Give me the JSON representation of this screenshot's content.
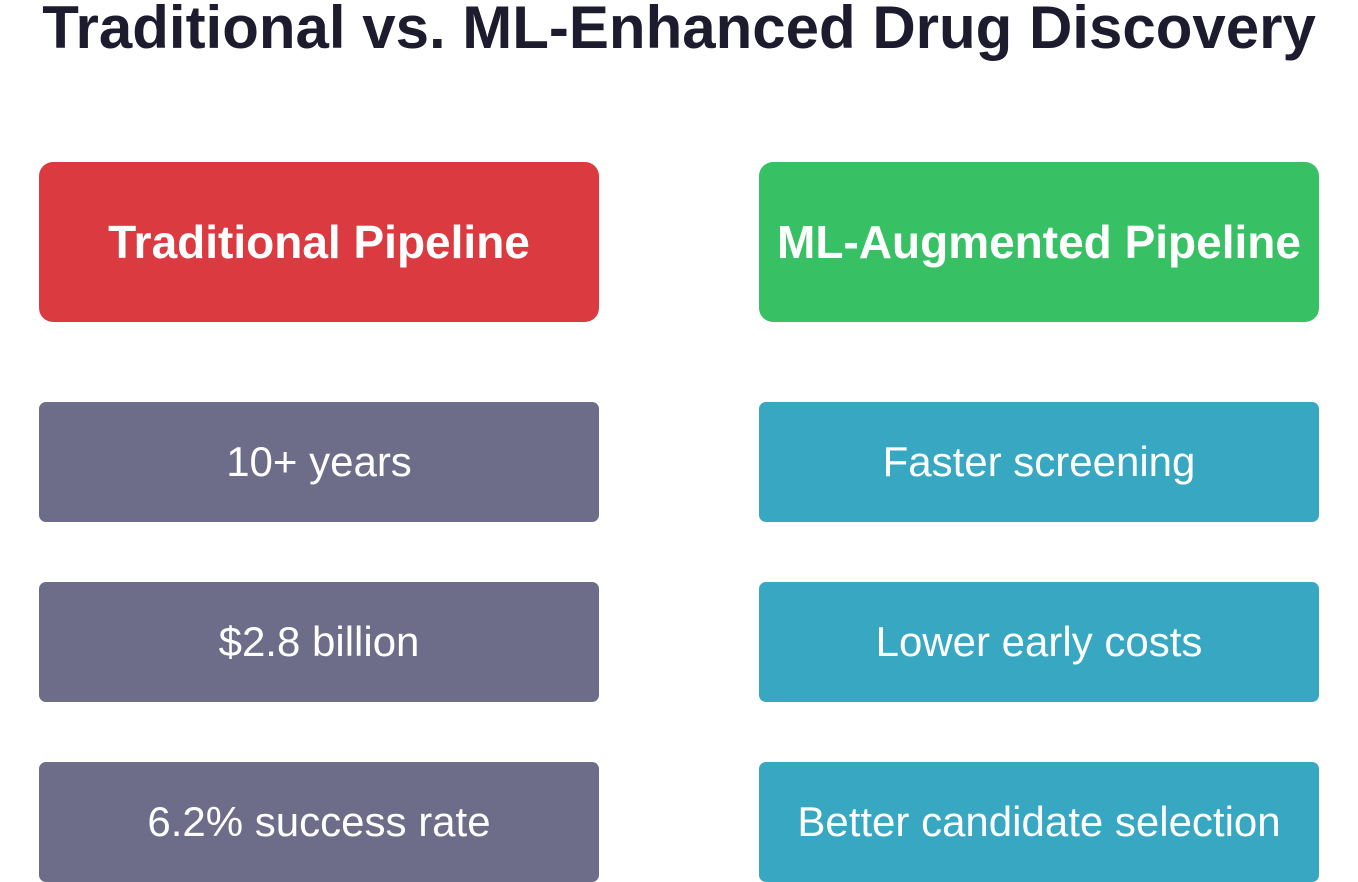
{
  "title": "Traditional vs. ML-Enhanced Drug Discovery",
  "columns": [
    {
      "header": "Traditional Pipeline",
      "items": [
        "10+ years",
        "$2.8 billion",
        "6.2% success rate"
      ]
    },
    {
      "header": "ML-Augmented Pipeline",
      "items": [
        "Faster screening",
        "Lower early costs",
        "Better candidate selection"
      ]
    }
  ]
}
